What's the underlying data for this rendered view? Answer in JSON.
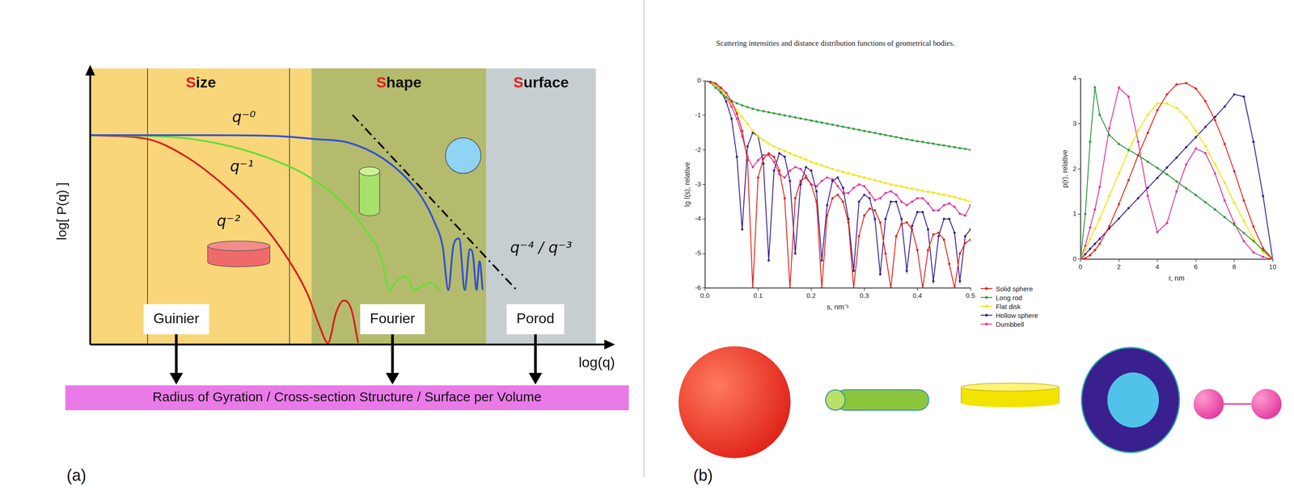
{
  "chart_data": [
    {
      "type": "line",
      "panel_label": "(a)",
      "x_label": "log(q)",
      "y_label": "log[ P(q) ]",
      "xlim": [
        0,
        10
      ],
      "ylim": [
        0,
        10
      ],
      "tick_labels": false,
      "grid": false,
      "marker": "none",
      "regions": [
        {
          "label": "Size",
          "xlim": [
            0,
            4.32
          ],
          "color": "#f9d67a"
        },
        {
          "label": "Shape",
          "xlim": [
            4.32,
            7.73
          ],
          "color": "#b5bb6c"
        },
        {
          "label": "Surface",
          "xlim": [
            7.73,
            9.87
          ],
          "color": "#c7ced2"
        }
      ],
      "vlines": [
        1.12,
        3.89
      ],
      "series": [
        {
          "color": "#2f50d8",
          "line_style": "solid",
          "x": [
            0,
            2.16,
            3.6,
            4.4,
            5.04,
            5.68,
            6.16,
            6.48,
            6.72,
            6.88,
            6.99,
            7.09,
            7.2,
            7.31,
            7.41,
            7.47,
            7.54,
            7.6,
            7.66
          ],
          "values": [
            7.86,
            7.86,
            7.83,
            7.71,
            7.58,
            7.03,
            6.27,
            5.5,
            4.59,
            3.67,
            2.05,
            3.73,
            3.98,
            2.05,
            3.58,
            3.36,
            2.05,
            3.12,
            2.05
          ]
        },
        {
          "color": "#66dd3c",
          "line_style": "solid",
          "x": [
            0,
            1.52,
            2.48,
            3.44,
            4.24,
            4.88,
            5.36,
            5.68,
            5.84,
            5.97,
            6.16,
            6.32,
            6.48,
            6.64,
            6.83
          ],
          "values": [
            7.86,
            7.8,
            7.55,
            7.03,
            6.33,
            5.41,
            4.34,
            3.27,
            2.05,
            2.35,
            2.57,
            2.05,
            2.2,
            2.32,
            2.05
          ]
        },
        {
          "color": "#d92020",
          "line_style": "solid",
          "x": [
            0,
            1.12,
            1.84,
            2.64,
            3.28,
            3.84,
            4.24,
            4.48,
            4.64,
            4.8,
            4.95,
            5.1,
            5.23
          ],
          "values": [
            7.86,
            7.71,
            7.09,
            5.93,
            4.71,
            3.27,
            1.9,
            0.67,
            0.06,
            1.2,
            1.65,
            1.3,
            0.06
          ]
        },
        {
          "color": "#111111",
          "line_style": "dashdot",
          "x": [
            5.12,
            8.32
          ],
          "values": [
            8.62,
            2.05
          ]
        }
      ],
      "annotations": [
        {
          "text": "q⁻⁰",
          "x": 3.0,
          "y": 8.5
        },
        {
          "text": "q⁻¹",
          "x": 2.96,
          "y": 6.64
        },
        {
          "text": "q⁻²",
          "x": 2.7,
          "y": 4.6
        },
        {
          "text": "q⁻⁴ / q⁻³",
          "x": 8.8,
          "y": 3.6
        }
      ],
      "methods": [
        {
          "text": "Guinier",
          "x": 1.68
        },
        {
          "text": "Fourier",
          "x": 5.9
        },
        {
          "text": "Porod",
          "x": 8.69
        }
      ],
      "caption": "Radius of Gyration / Cross-section Structure / Surface per Volume"
    },
    {
      "type": "line",
      "panel_label": "(b)",
      "title": "Scattering intensities and distance distribution functions of geometrical bodies.",
      "x_label": "s, nm⁻¹",
      "y_label": "lg I(s), relative",
      "xlim": [
        0,
        0.5
      ],
      "xticks": [
        {
          "value": 0,
          "label": "0.0"
        },
        0.1,
        0.2,
        0.3,
        0.4,
        0.5
      ],
      "ylim": [
        -6,
        0
      ],
      "yticks": [
        -6,
        -5,
        -4,
        -3,
        -2,
        -1,
        0
      ],
      "grid": false,
      "marker": "circle",
      "legend": "bottom right",
      "x": [
        0,
        0.01,
        0.02,
        0.03,
        0.04,
        0.05,
        0.06,
        0.07,
        0.08,
        0.09,
        0.1,
        0.11,
        0.12,
        0.13,
        0.14,
        0.15,
        0.16,
        0.17,
        0.18,
        0.19,
        0.2,
        0.21,
        0.22,
        0.23,
        0.24,
        0.25,
        0.26,
        0.27,
        0.28,
        0.29,
        0.3,
        0.31,
        0.32,
        0.33,
        0.34,
        0.35,
        0.36,
        0.37,
        0.38,
        0.39,
        0.4,
        0.41,
        0.42,
        0.43,
        0.44,
        0.45,
        0.46,
        0.47,
        0.48,
        0.49,
        0.5
      ],
      "series": [
        {
          "name": "Solid sphere",
          "color": "#e0241a",
          "values": [
            0,
            -0.02,
            -0.08,
            -0.2,
            -0.35,
            -0.6,
            -0.95,
            -1.45,
            -2.3,
            -6,
            -2.8,
            -2.25,
            -2.1,
            -2.2,
            -2.6,
            -3.4,
            -6,
            -3.4,
            -2.9,
            -2.8,
            -3.0,
            -3.5,
            -6,
            -3.9,
            -3.4,
            -3.3,
            -3.5,
            -4.1,
            -6,
            -4.5,
            -3.9,
            -3.7,
            -3.75,
            -4.1,
            -5.0,
            -6,
            -4.5,
            -4.15,
            -4.1,
            -4.3,
            -4.9,
            -6,
            -4.9,
            -4.45,
            -4.4,
            -4.6,
            -5.3,
            -6,
            -5.0,
            -4.7,
            -4.6
          ]
        },
        {
          "name": "Long rod",
          "color": "#2e9a3c",
          "values": [
            0,
            -0.05,
            -0.2,
            -0.35,
            -0.48,
            -0.58,
            -0.65,
            -0.71,
            -0.76,
            -0.81,
            -0.85,
            -0.88,
            -0.91,
            -0.94,
            -0.97,
            -1.0,
            -1.03,
            -1.06,
            -1.09,
            -1.12,
            -1.15,
            -1.18,
            -1.21,
            -1.24,
            -1.27,
            -1.3,
            -1.33,
            -1.36,
            -1.39,
            -1.42,
            -1.45,
            -1.48,
            -1.51,
            -1.54,
            -1.57,
            -1.6,
            -1.63,
            -1.66,
            -1.69,
            -1.72,
            -1.75,
            -1.77,
            -1.8,
            -1.82,
            -1.85,
            -1.87,
            -1.9,
            -1.92,
            -1.95,
            -1.97,
            -2.0
          ]
        },
        {
          "name": "Flat disk",
          "color": "#f2e400",
          "values": [
            0,
            -0.03,
            -0.12,
            -0.27,
            -0.45,
            -0.65,
            -0.85,
            -1.05,
            -1.25,
            -1.45,
            -1.6,
            -1.72,
            -1.82,
            -1.9,
            -1.97,
            -2.03,
            -2.1,
            -2.16,
            -2.22,
            -2.28,
            -2.35,
            -2.4,
            -2.45,
            -2.5,
            -2.55,
            -2.6,
            -2.64,
            -2.68,
            -2.72,
            -2.76,
            -2.8,
            -2.84,
            -2.88,
            -2.92,
            -2.96,
            -3.0,
            -3.03,
            -3.06,
            -3.09,
            -3.12,
            -3.15,
            -3.18,
            -3.21,
            -3.24,
            -3.27,
            -3.3,
            -3.33,
            -3.37,
            -3.41,
            -3.45,
            -3.5
          ]
        },
        {
          "name": "Hollow sphere",
          "color": "#3a1f8e",
          "values": [
            0,
            -0.03,
            -0.12,
            -0.3,
            -0.6,
            -1.1,
            -2.2,
            -4.3,
            -1.9,
            -1.5,
            -1.6,
            -2.4,
            -5.2,
            -2.6,
            -2.1,
            -2.2,
            -2.9,
            -5.0,
            -3.0,
            -2.5,
            -2.6,
            -3.2,
            -5.2,
            -3.6,
            -2.9,
            -2.8,
            -3.1,
            -4.0,
            -5.5,
            -3.5,
            -3.3,
            -3.4,
            -4.0,
            -5.6,
            -4.0,
            -3.5,
            -3.5,
            -4.0,
            -5.5,
            -4.2,
            -3.8,
            -3.8,
            -4.3,
            -5.8,
            -4.5,
            -4.0,
            -4.0,
            -4.4,
            -5.8,
            -4.5,
            -4.3
          ]
        },
        {
          "name": "Dumbbell",
          "color": "#e0359c",
          "values": [
            0,
            -0.02,
            -0.1,
            -0.25,
            -0.45,
            -0.75,
            -1.1,
            -1.6,
            -2.2,
            -2.5,
            -2.3,
            -2.15,
            -2.15,
            -2.35,
            -2.7,
            -2.8,
            -2.6,
            -2.5,
            -2.55,
            -2.75,
            -3.0,
            -3.05,
            -2.9,
            -2.8,
            -2.85,
            -3.05,
            -3.25,
            -3.25,
            -3.1,
            -3.0,
            -3.05,
            -3.25,
            -3.45,
            -3.4,
            -3.25,
            -3.2,
            -3.3,
            -3.5,
            -3.6,
            -3.5,
            -3.4,
            -3.4,
            -3.55,
            -3.75,
            -3.75,
            -3.6,
            -3.55,
            -3.65,
            -3.85,
            -3.9,
            -3.6
          ]
        }
      ]
    },
    {
      "type": "line",
      "x_label": "r, nm",
      "y_label": "p(r), relative",
      "xlim": [
        0,
        10
      ],
      "xticks": [
        0,
        2,
        4,
        6,
        8,
        10
      ],
      "ylim": [
        0,
        4
      ],
      "yticks": [
        0,
        1,
        2,
        3,
        4
      ],
      "grid": false,
      "marker": "circle",
      "x": [
        0,
        0.25,
        0.5,
        0.75,
        1,
        1.5,
        2,
        2.5,
        3,
        3.5,
        4,
        4.5,
        5,
        5.5,
        6,
        6.5,
        7,
        7.5,
        8,
        8.5,
        9,
        9.5,
        10
      ],
      "series": [
        {
          "name": "Solid sphere",
          "color": "#e0241a",
          "values": [
            0,
            0.02,
            0.09,
            0.2,
            0.34,
            0.73,
            1.22,
            1.75,
            2.3,
            2.8,
            3.3,
            3.65,
            3.87,
            3.9,
            3.78,
            3.5,
            3.08,
            2.55,
            1.95,
            1.3,
            0.72,
            0.24,
            0
          ]
        },
        {
          "name": "Long rod",
          "color": "#2e9a3c",
          "values": [
            0,
            1.0,
            2.6,
            3.8,
            3.2,
            2.75,
            2.55,
            2.42,
            2.3,
            2.16,
            2.02,
            1.88,
            1.72,
            1.57,
            1.42,
            1.26,
            1.1,
            0.93,
            0.76,
            0.58,
            0.4,
            0.2,
            0
          ]
        },
        {
          "name": "Flat disk",
          "color": "#f2e400",
          "values": [
            0,
            0.22,
            0.45,
            0.68,
            0.9,
            1.4,
            1.9,
            2.4,
            2.85,
            3.2,
            3.45,
            3.45,
            3.35,
            3.15,
            2.85,
            2.5,
            2.1,
            1.7,
            1.25,
            0.85,
            0.45,
            0.15,
            0
          ]
        },
        {
          "name": "Hollow sphere",
          "color": "#3a1f8e",
          "values": [
            0,
            0.11,
            0.23,
            0.34,
            0.45,
            0.68,
            0.9,
            1.13,
            1.35,
            1.58,
            1.8,
            2.03,
            2.25,
            2.48,
            2.7,
            2.93,
            3.15,
            3.38,
            3.65,
            3.6,
            2.6,
            1.4,
            0
          ]
        },
        {
          "name": "Dumbbell",
          "color": "#e0359c",
          "values": [
            0,
            0.3,
            0.7,
            1.1,
            1.6,
            2.9,
            3.8,
            3.6,
            2.6,
            1.4,
            0.6,
            0.8,
            1.5,
            2.1,
            2.45,
            2.35,
            1.9,
            1.3,
            0.8,
            0.4,
            0.15,
            0.05,
            0
          ]
        }
      ]
    }
  ]
}
